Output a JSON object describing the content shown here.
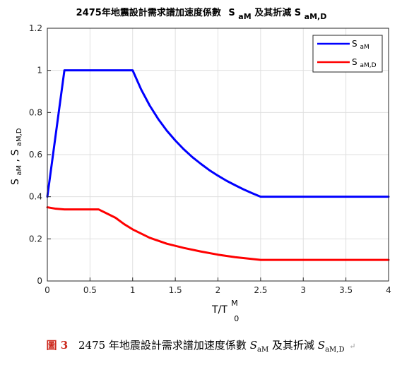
{
  "chart_data": {
    "type": "line",
    "title_main": "2475年地震設計需求譜加速度係數",
    "title_sym1": "S",
    "title_sub1": "aM",
    "title_mid": "及其折減",
    "title_sym2": "S",
    "title_sub2": "aM,D",
    "xlabel": "T/T",
    "xlabel_sup": "M",
    "xlabel_sub": "0",
    "ylabel_main": "S",
    "ylabel_sub1": "aM",
    "ylabel_sep": ", S",
    "ylabel_sub2": "aM,D",
    "xlim": [
      0,
      4
    ],
    "ylim": [
      0,
      1.2
    ],
    "xticks": [
      "0",
      "0.5",
      "1",
      "1.5",
      "2",
      "2.5",
      "3",
      "3.5",
      "4"
    ],
    "yticks": [
      "0",
      "0.2",
      "0.4",
      "0.6",
      "0.8",
      "1",
      "1.2"
    ],
    "grid": true,
    "legend_position": "top-right",
    "series": [
      {
        "name_base": "S",
        "name_sub": "aM",
        "color": "#0000ff",
        "x": [
          0,
          0.2,
          1,
          1.1,
          1.2,
          1.3,
          1.4,
          1.5,
          1.6,
          1.7,
          1.8,
          1.9,
          2,
          2.1,
          2.2,
          2.3,
          2.4,
          2.5,
          4
        ],
        "y": [
          0.4,
          1,
          1,
          0.909,
          0.833,
          0.769,
          0.714,
          0.667,
          0.625,
          0.588,
          0.556,
          0.526,
          0.5,
          0.476,
          0.455,
          0.435,
          0.417,
          0.4,
          0.4
        ]
      },
      {
        "name_base": "S",
        "name_sub": "aM,D",
        "color": "#ff0000",
        "x": [
          0,
          0.1,
          0.2,
          0.6,
          0.7,
          0.8,
          0.9,
          1,
          1.2,
          1.4,
          1.6,
          1.8,
          2,
          2.2,
          2.5,
          4
        ],
        "y": [
          0.35,
          0.343,
          0.34,
          0.34,
          0.32,
          0.3,
          0.27,
          0.245,
          0.205,
          0.177,
          0.157,
          0.14,
          0.125,
          0.113,
          0.1,
          0.1
        ]
      }
    ]
  },
  "caption": {
    "fig": "圖 3",
    "text": "2475 年地震設計需求譜加速度係數",
    "sym1": "S",
    "sub1": "aM",
    "mid": "及其折減",
    "sym2": "S",
    "sub2": "aM,D",
    "tail": "↵"
  }
}
